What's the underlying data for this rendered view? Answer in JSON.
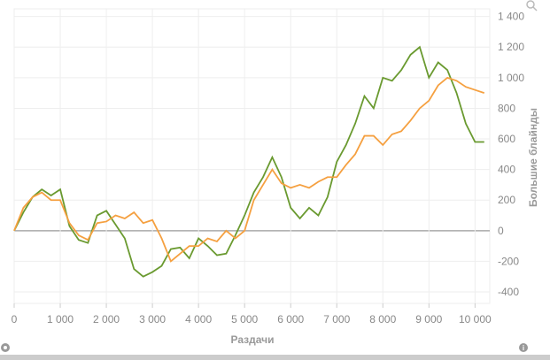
{
  "chart_data": {
    "type": "line",
    "x_label": "Раздачи",
    "y_label": "Большие блайнды",
    "x": [
      0,
      200,
      400,
      600,
      800,
      1000,
      1200,
      1400,
      1600,
      1800,
      2000,
      2200,
      2400,
      2600,
      2800,
      3000,
      3200,
      3400,
      3600,
      3800,
      4000,
      4200,
      4400,
      4600,
      4800,
      5000,
      5200,
      5400,
      5600,
      5800,
      6000,
      6200,
      6400,
      6600,
      6800,
      7000,
      7200,
      7400,
      7600,
      7800,
      8000,
      8200,
      8400,
      8600,
      8800,
      9000,
      9200,
      9400,
      9600,
      9800,
      10000,
      10200
    ],
    "series": [
      {
        "name": "green",
        "color": "#6a9a30",
        "values": [
          0,
          120,
          220,
          270,
          230,
          270,
          30,
          -60,
          -80,
          100,
          130,
          40,
          -50,
          -250,
          -300,
          -270,
          -230,
          -120,
          -110,
          -180,
          -50,
          -100,
          -160,
          -150,
          -30,
          100,
          250,
          350,
          480,
          350,
          150,
          80,
          150,
          100,
          220,
          450,
          560,
          700,
          880,
          800,
          1000,
          980,
          1050,
          1150,
          1200,
          1000,
          1100,
          1050,
          900,
          700,
          580,
          580
        ]
      },
      {
        "name": "orange",
        "color": "#f5a040",
        "values": [
          0,
          150,
          220,
          250,
          200,
          200,
          50,
          -30,
          -60,
          50,
          60,
          100,
          80,
          120,
          50,
          70,
          -50,
          -200,
          -150,
          -100,
          -100,
          -50,
          -70,
          0,
          -50,
          0,
          200,
          300,
          400,
          310,
          280,
          300,
          280,
          320,
          350,
          350,
          430,
          500,
          620,
          620,
          560,
          630,
          650,
          720,
          800,
          850,
          950,
          1000,
          980,
          940,
          920,
          900
        ]
      }
    ],
    "xlim": [
      0,
      10320
    ],
    "ylim": [
      -475,
      1450
    ],
    "xticks": [
      0,
      {
        "value": 1000,
        "label": "1 000"
      },
      {
        "value": 2000,
        "label": "2 000"
      },
      {
        "value": 3000,
        "label": "3 000"
      },
      {
        "value": 4000,
        "label": "4 000"
      },
      {
        "value": 5000,
        "label": "5 000"
      },
      {
        "value": 6000,
        "label": "6 000"
      },
      {
        "value": 7000,
        "label": "7 000"
      },
      {
        "value": 8000,
        "label": "8 000"
      },
      {
        "value": 9000,
        "label": "9 000"
      },
      {
        "value": 10000,
        "label": "10 000"
      }
    ],
    "yticks": [
      -400,
      -200,
      0,
      200,
      400,
      600,
      800,
      {
        "value": 1000,
        "label": "1 000"
      },
      {
        "value": 1200,
        "label": "1 200"
      },
      {
        "value": 1400,
        "label": "1 400"
      }
    ],
    "grid": true
  }
}
